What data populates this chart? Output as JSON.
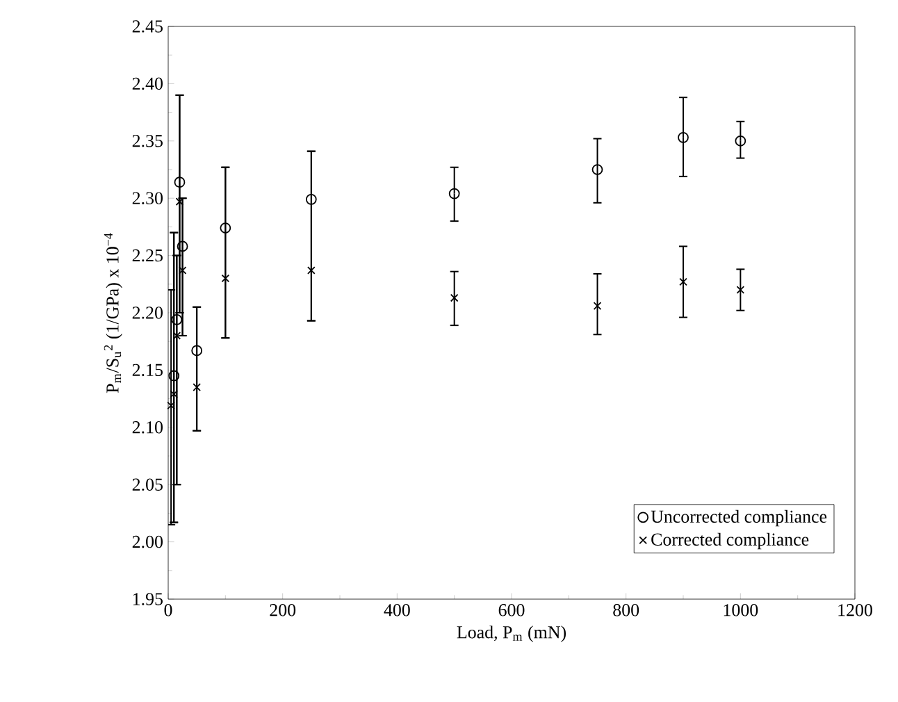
{
  "chart_data": {
    "type": "scatter",
    "xlabel": "Load, P$_{m}$ (mN)",
    "ylabel": "P$_{m}$/S$_{u}$$^{2}$ (1/GPa) x 10$^{−4}$",
    "xlim": [
      0,
      1200
    ],
    "xticks": [
      0,
      200,
      400,
      600,
      800,
      1000,
      1200
    ],
    "ylim": [
      1.95,
      2.45
    ],
    "yticks": [
      {
        "value": 1.95,
        "label": "1.95"
      },
      {
        "value": 2.0,
        "label": "2.00"
      },
      {
        "value": 2.05,
        "label": "2.05"
      },
      {
        "value": 2.1,
        "label": "2.10"
      },
      {
        "value": 2.15,
        "label": "2.15"
      },
      {
        "value": 2.2,
        "label": "2.20"
      },
      {
        "value": 2.25,
        "label": "2.25"
      },
      {
        "value": 2.3,
        "label": "2.30"
      },
      {
        "value": 2.35,
        "label": "2.35"
      },
      {
        "value": 2.4,
        "label": "2.40"
      },
      {
        "value": 2.45,
        "label": "2.45"
      }
    ],
    "grid": false,
    "legend": "bottom right",
    "series": [
      {
        "name": "Uncorrected compliance",
        "color": "#000000",
        "marker": "circle",
        "x": [
          10,
          15,
          20,
          25,
          50,
          100,
          250,
          500,
          750,
          900,
          1000
        ],
        "values": [
          2.145,
          2.194,
          2.314,
          2.258,
          2.167,
          2.274,
          2.299,
          2.304,
          2.325,
          2.353,
          2.35
        ],
        "errors": [
          [
            2.017,
            2.27
          ],
          [
            2.05,
            2.25
          ],
          [
            2.2,
            2.39
          ],
          [
            2.18,
            2.3
          ],
          [
            2.097,
            2.205
          ],
          [
            2.178,
            2.327
          ],
          [
            2.193,
            2.341
          ],
          [
            2.28,
            2.327
          ],
          [
            2.296,
            2.352
          ],
          [
            2.319,
            2.388
          ],
          [
            2.335,
            2.367
          ]
        ]
      },
      {
        "name": "Corrected compliance",
        "color": "#000000",
        "marker": "cross",
        "x": [
          5,
          10,
          15,
          20,
          25,
          50,
          100,
          250,
          500,
          750,
          900,
          1000
        ],
        "values": [
          2.119,
          2.129,
          2.18,
          2.297,
          2.237,
          2.135,
          2.23,
          2.237,
          2.213,
          2.206,
          2.227,
          2.22
        ],
        "errors": [
          [
            2.015,
            2.22
          ],
          [
            2.017,
            2.27
          ],
          [
            2.05,
            2.25
          ],
          [
            2.2,
            2.39
          ],
          [
            2.18,
            2.3
          ],
          [
            2.097,
            2.205
          ],
          [
            2.178,
            2.327
          ],
          [
            2.193,
            2.341
          ],
          [
            2.189,
            2.236
          ],
          [
            2.181,
            2.234
          ],
          [
            2.196,
            2.258
          ],
          [
            2.202,
            2.238
          ]
        ]
      }
    ]
  }
}
